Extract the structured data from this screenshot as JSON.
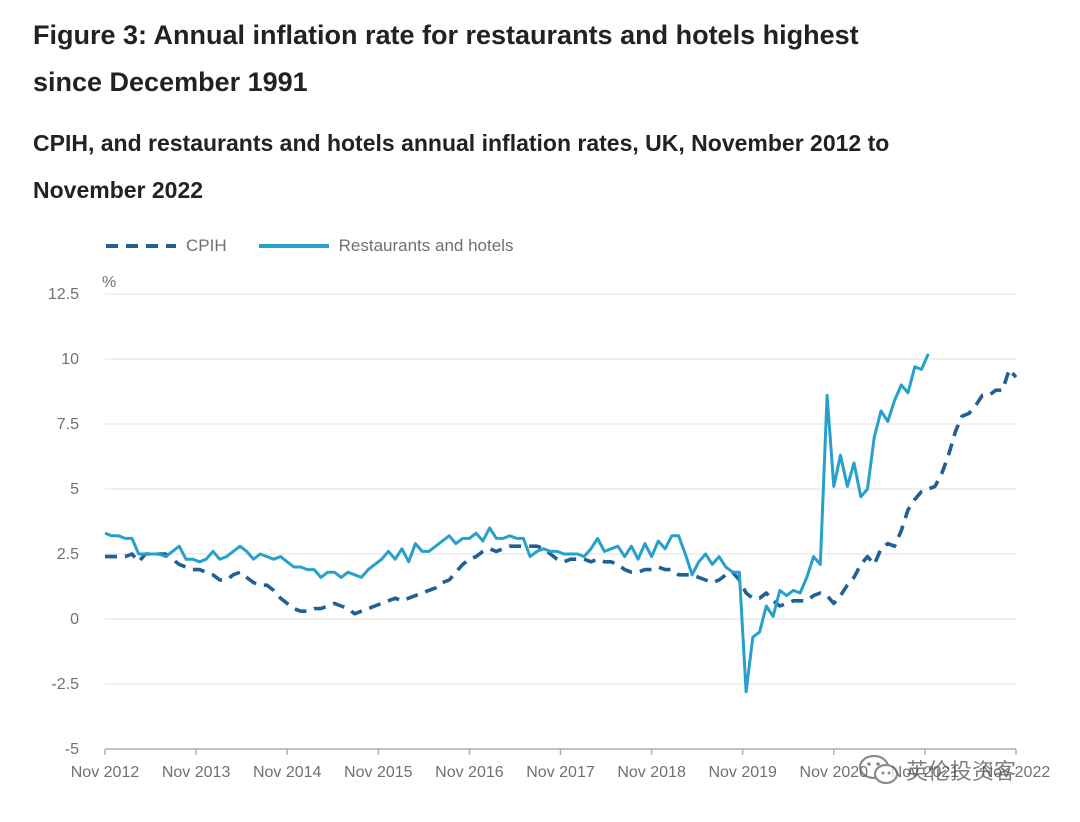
{
  "header": {
    "title": "Figure 3: Annual inflation rate for restaurants and hotels highest since December 1991",
    "subtitle": "CPIH, and restaurants and hotels annual inflation rates, UK, November 2012 to November 2022"
  },
  "watermark": {
    "text": "英伦投资客"
  },
  "colors": {
    "cpih": "#206095",
    "restaurants": "#27a0cc",
    "grid": "#e6e6e6",
    "axis": "#b0b0b0",
    "text": "#707070"
  },
  "chart_data": {
    "type": "line",
    "unit": "%",
    "ylim": [
      -5,
      12.5
    ],
    "yticks": [
      -5,
      -2.5,
      0,
      2.5,
      5,
      7.5,
      10,
      12.5
    ],
    "ytick_labels": [
      "-5",
      "-2.5",
      "0",
      "2.5",
      "5",
      "7.5",
      "10",
      "12.5"
    ],
    "xlim": [
      "Nov 2012",
      "Nov 2022"
    ],
    "xtick_labels": [
      "Nov 2012",
      "Nov 2013",
      "Nov 2014",
      "Nov 2015",
      "Nov 2016",
      "Nov 2017",
      "Nov 2018",
      "Nov 2019",
      "Nov 2020",
      "Nov 2021",
      "Nov 2022"
    ],
    "grid": true,
    "legend_position": "top-left",
    "series": [
      {
        "name": "CPIH",
        "style": "dashed",
        "values": [
          2.4,
          2.4,
          2.4,
          2.4,
          2.5,
          2.2,
          2.5,
          2.5,
          2.5,
          2.5,
          2.3,
          2.1,
          2.0,
          1.9,
          1.9,
          1.8,
          1.7,
          1.5,
          1.5,
          1.7,
          1.8,
          1.6,
          1.4,
          1.3,
          1.3,
          1.1,
          0.8,
          0.6,
          0.4,
          0.3,
          0.3,
          0.4,
          0.4,
          0.5,
          0.6,
          0.5,
          0.4,
          0.2,
          0.3,
          0.4,
          0.5,
          0.6,
          0.7,
          0.8,
          0.7,
          0.8,
          0.9,
          1.0,
          1.1,
          1.2,
          1.4,
          1.5,
          1.8,
          2.1,
          2.3,
          2.4,
          2.6,
          2.7,
          2.6,
          2.7,
          2.8,
          2.8,
          2.8,
          2.8,
          2.8,
          2.7,
          2.5,
          2.3,
          2.2,
          2.3,
          2.3,
          2.3,
          2.2,
          2.3,
          2.2,
          2.2,
          2.1,
          1.9,
          1.8,
          1.8,
          1.9,
          1.9,
          2.0,
          1.9,
          1.9,
          1.7,
          1.7,
          1.7,
          1.6,
          1.5,
          1.4,
          1.5,
          1.7,
          1.8,
          1.5,
          1.0,
          0.8,
          0.8,
          1.0,
          0.7,
          0.5,
          0.6,
          0.7,
          0.7,
          0.7,
          0.9,
          1.0,
          0.9,
          0.6,
          0.9,
          1.3,
          1.6,
          2.1,
          2.4,
          2.1,
          2.7,
          2.9,
          2.8,
          3.4,
          4.2,
          4.6,
          4.9,
          5.0,
          5.1,
          5.6,
          6.3,
          7.2,
          7.8,
          7.9,
          8.2,
          8.6,
          8.6,
          8.8,
          8.8,
          9.6,
          9.3
        ]
      },
      {
        "name": "Restaurants and hotels",
        "style": "solid",
        "values": [
          3.3,
          3.2,
          3.2,
          3.1,
          3.1,
          2.5,
          2.5,
          2.5,
          2.5,
          2.4,
          2.6,
          2.8,
          2.3,
          2.3,
          2.2,
          2.3,
          2.6,
          2.3,
          2.4,
          2.6,
          2.8,
          2.6,
          2.3,
          2.5,
          2.4,
          2.3,
          2.4,
          2.2,
          2.0,
          2.0,
          1.9,
          1.9,
          1.6,
          1.8,
          1.8,
          1.6,
          1.8,
          1.7,
          1.6,
          1.9,
          2.1,
          2.3,
          2.6,
          2.3,
          2.7,
          2.2,
          2.9,
          2.6,
          2.6,
          2.8,
          3.0,
          3.2,
          2.9,
          3.1,
          3.1,
          3.3,
          3.0,
          3.5,
          3.1,
          3.1,
          3.2,
          3.1,
          3.1,
          2.4,
          2.6,
          2.7,
          2.6,
          2.6,
          2.5,
          2.5,
          2.5,
          2.4,
          2.7,
          3.1,
          2.6,
          2.7,
          2.8,
          2.4,
          2.8,
          2.3,
          2.9,
          2.4,
          3.0,
          2.7,
          3.2,
          3.2,
          2.5,
          1.7,
          2.2,
          2.5,
          2.1,
          2.4,
          2.0,
          1.8,
          1.8,
          -2.8,
          -0.7,
          -0.5,
          0.5,
          0.1,
          1.1,
          0.9,
          1.1,
          1.0,
          1.6,
          2.4,
          2.1,
          8.6,
          5.1,
          6.3,
          5.1,
          6.0,
          4.7,
          5.0,
          7.0,
          8.0,
          7.6,
          8.4,
          9.0,
          8.7,
          9.7,
          9.6,
          10.2
        ]
      }
    ]
  }
}
